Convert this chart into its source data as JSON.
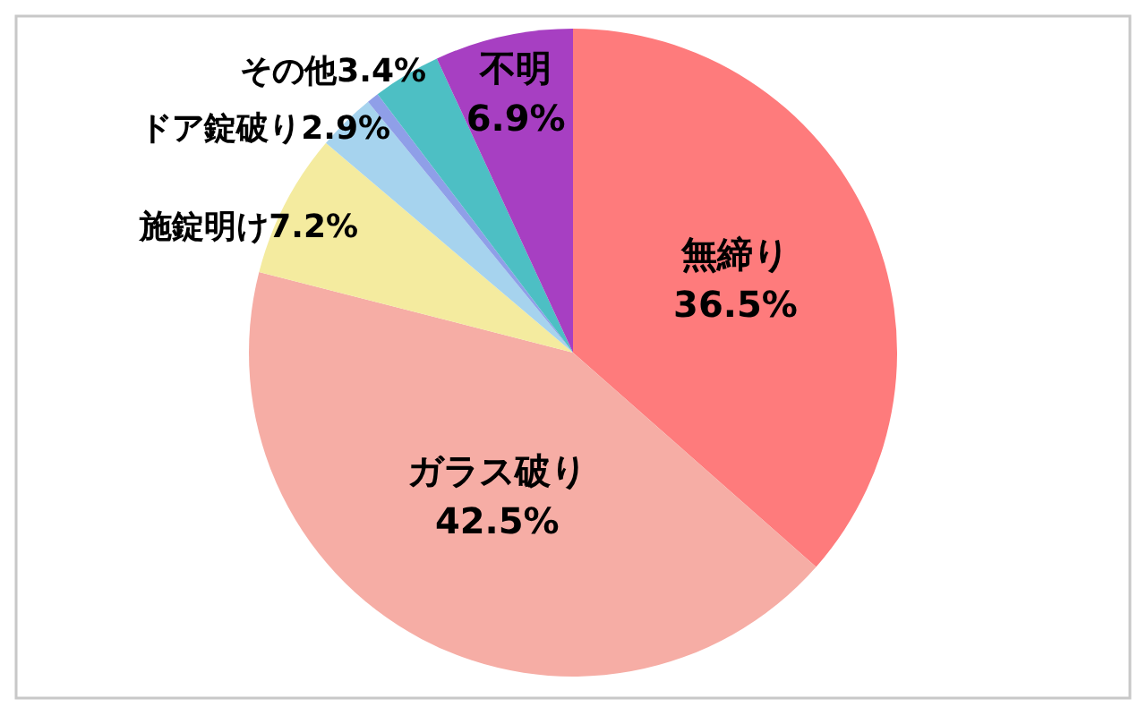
{
  "chart_data": {
    "type": "pie",
    "categories": [
      "無締り",
      "ガラス破り",
      "施錠明け",
      "ドア錠破り",
      null,
      "その他",
      "不明"
    ],
    "values": [
      36.5,
      42.5,
      7.2,
      2.9,
      0.6,
      3.4,
      6.9
    ],
    "colors": [
      "#fe7b7c",
      "#f6ada5",
      "#f4eb9f",
      "#a6d3ee",
      "#8f9fe8",
      "#4dbfc4",
      "#a73fc2"
    ],
    "value_labels": [
      "36.5%",
      "42.5%",
      "7.2%",
      "2.9%",
      null,
      "3.4%",
      "6.9%"
    ]
  }
}
